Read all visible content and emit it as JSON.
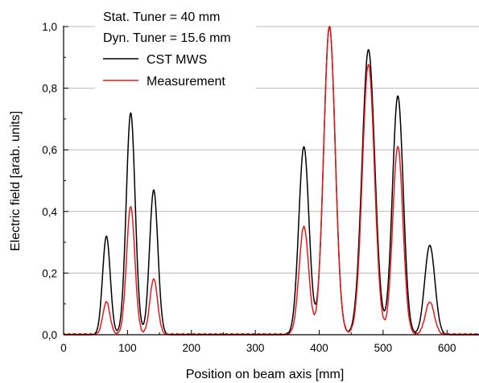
{
  "chart_data": {
    "type": "line",
    "xlabel": "Position on beam axis [mm]",
    "ylabel": "Electric field [arab. units]",
    "xlim": [
      0,
      650
    ],
    "ylim": [
      0,
      1.0
    ],
    "x_ticks": [
      0,
      100,
      200,
      300,
      400,
      500,
      600
    ],
    "x_tick_labels": [
      "0",
      "100",
      "200",
      "300",
      "400",
      "500",
      "600"
    ],
    "y_ticks": [
      0,
      0.2,
      0.4,
      0.6,
      0.8,
      1.0
    ],
    "y_tick_labels": [
      "0,0",
      "0,2",
      "0,4",
      "0,6",
      "0,8",
      "1,0"
    ],
    "grid": "horizontal",
    "legend_position": "top-left",
    "annotations": [
      "Stat. Tuner = 40 mm",
      "Dyn. Tuner = 15.6 mm"
    ],
    "series": [
      {
        "name": "CST MWS",
        "color": "#000000",
        "peaks": [
          {
            "x": 67,
            "y": 0.32,
            "width": 6
          },
          {
            "x": 105,
            "y": 0.72,
            "width": 7
          },
          {
            "x": 141,
            "y": 0.47,
            "width": 6.5
          },
          {
            "x": 376,
            "y": 0.61,
            "width": 8
          },
          {
            "x": 416,
            "y": 1.0,
            "width": 9
          },
          {
            "x": 477,
            "y": 0.925,
            "width": 10
          },
          {
            "x": 523,
            "y": 0.775,
            "width": 8.5
          },
          {
            "x": 573,
            "y": 0.29,
            "width": 8
          }
        ]
      },
      {
        "name": "Measurement",
        "color": "#e31a1c",
        "peaks": [
          {
            "x": 67,
            "y": 0.105,
            "width": 5.5
          },
          {
            "x": 105,
            "y": 0.415,
            "width": 6.5
          },
          {
            "x": 141,
            "y": 0.18,
            "width": 6
          },
          {
            "x": 376,
            "y": 0.35,
            "width": 7.5
          },
          {
            "x": 416,
            "y": 1.0,
            "width": 9
          },
          {
            "x": 477,
            "y": 0.875,
            "width": 9.5
          },
          {
            "x": 523,
            "y": 0.61,
            "width": 8
          },
          {
            "x": 573,
            "y": 0.105,
            "width": 7
          }
        ]
      }
    ]
  }
}
